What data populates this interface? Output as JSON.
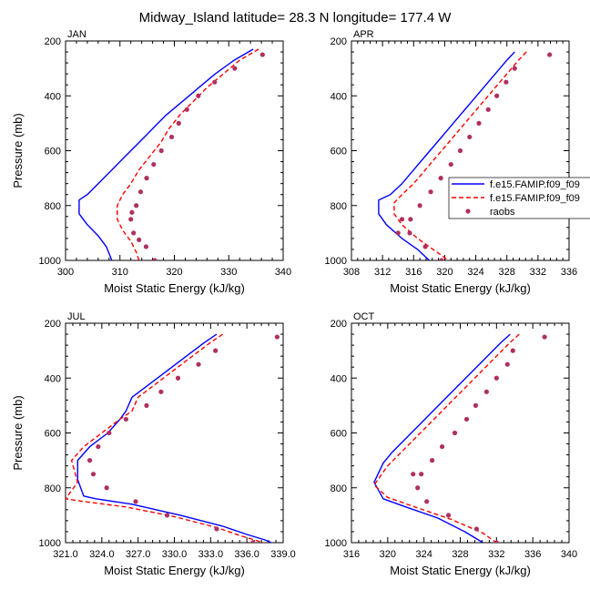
{
  "figure": {
    "title": "Midway_Island  latitude= 28.3 N longitude= 177.4 W"
  },
  "colors": {
    "model1": "#0000ff",
    "model2": "#ff0000",
    "raobs": "#b03060",
    "axis": "#000000"
  },
  "legend": {
    "placement": "right-of-top-right-panel",
    "entries": [
      {
        "key": "model1",
        "label": "f.e15.FAMIP.f09_f09",
        "style": "solid-line"
      },
      {
        "key": "model2",
        "label": "f.e15.FAMIP.f09_f09",
        "style": "dashed-line"
      },
      {
        "key": "raobs",
        "label": "raobs",
        "style": "dot"
      }
    ]
  },
  "chart_data": [
    {
      "type": "line",
      "panel_label": "JAN",
      "xlabel": "Moist Static Energy (kJ/kg)",
      "ylabel": "Pressure (mb)",
      "xlim": [
        300,
        340
      ],
      "ylim": [
        1000,
        200
      ],
      "y_inverted": true,
      "xticks": [
        300,
        310,
        320,
        330,
        340
      ],
      "xtick_labels": [
        "300",
        "310",
        "320",
        "330",
        "340"
      ],
      "yticks": [
        200,
        400,
        600,
        800,
        1000
      ],
      "ytick_labels": [
        "200",
        "400",
        "600",
        "800",
        "1000"
      ],
      "series": [
        {
          "key": "model1",
          "x": [
            334.5,
            331,
            327.5,
            324.5,
            321.5,
            318.5,
            316,
            313.5,
            311,
            308.5,
            306,
            304,
            302.5,
            302.5,
            304,
            306,
            307.5,
            308.5
          ],
          "y": [
            230,
            270,
            320,
            370,
            420,
            470,
            520,
            570,
            620,
            670,
            720,
            760,
            780,
            830,
            870,
            910,
            950,
            1000
          ]
        },
        {
          "key": "model2",
          "x": [
            335.5,
            332,
            329,
            326,
            323.5,
            321,
            319,
            317.5,
            315.5,
            313.5,
            312,
            310.5,
            309.5,
            309.5,
            310.5,
            312,
            313,
            313.5
          ],
          "y": [
            230,
            270,
            320,
            370,
            420,
            470,
            520,
            570,
            620,
            670,
            720,
            760,
            800,
            850,
            890,
            930,
            970,
            1000
          ]
        },
        {
          "key": "raobs",
          "style": "points",
          "x": [
            336.2,
            331.1,
            327.4,
            324.4,
            322.3,
            320.8,
            319.5,
            317.6,
            316.2,
            314.9,
            313.8,
            313.0,
            312.2,
            312.0,
            312.5,
            313.5,
            314.8,
            316.4
          ],
          "y": [
            250,
            300,
            350,
            400,
            450,
            500,
            550,
            600,
            650,
            700,
            750,
            800,
            825,
            850,
            900,
            925,
            950,
            1000
          ]
        }
      ]
    },
    {
      "type": "line",
      "panel_label": "APR",
      "xlabel": "Moist Static Energy (kJ/kg)",
      "ylabel": "",
      "xlim": [
        308,
        336
      ],
      "ylim": [
        1000,
        200
      ],
      "y_inverted": true,
      "xticks": [
        308,
        312,
        316,
        320,
        324,
        328,
        332,
        336
      ],
      "xtick_labels": [
        "308",
        "312",
        "316",
        "320",
        "324",
        "328",
        "332",
        "336"
      ],
      "yticks": [
        200,
        400,
        600,
        800,
        1000
      ],
      "ytick_labels": [
        "200",
        "400",
        "600",
        "800",
        "1000"
      ],
      "series": [
        {
          "key": "model1",
          "x": [
            329,
            328,
            326.5,
            325,
            323.5,
            322,
            320.5,
            319,
            317.5,
            316,
            314.5,
            313,
            311.5,
            311.5,
            312.5,
            314.5,
            316.5,
            318
          ],
          "y": [
            240,
            270,
            320,
            370,
            420,
            470,
            520,
            570,
            620,
            670,
            720,
            760,
            780,
            830,
            870,
            920,
            960,
            1000
          ]
        },
        {
          "key": "model2",
          "x": [
            330.5,
            329.5,
            328,
            326.5,
            325,
            323.5,
            322,
            320.5,
            319,
            317.5,
            316,
            314.5,
            313.5,
            313.5,
            314.5,
            316.5,
            318.5,
            320.5
          ],
          "y": [
            240,
            270,
            320,
            370,
            420,
            470,
            520,
            570,
            620,
            670,
            720,
            760,
            790,
            830,
            870,
            920,
            960,
            1000
          ]
        },
        {
          "key": "raobs",
          "style": "points",
          "x": [
            333.5,
            329.0,
            327.9,
            326.7,
            325.6,
            324.4,
            323.2,
            322.0,
            320.8,
            319.5,
            318.2,
            316.8,
            315.6,
            314.5,
            314.0,
            315.5,
            317.5,
            319.6
          ],
          "y": [
            250,
            300,
            350,
            400,
            450,
            500,
            550,
            600,
            650,
            700,
            750,
            800,
            850,
            850,
            900,
            900,
            950,
            1000
          ]
        }
      ]
    },
    {
      "type": "line",
      "panel_label": "JUL",
      "xlabel": "Moist Static Energy (kJ/kg)",
      "ylabel": "Pressure (mb)",
      "xlim": [
        321,
        339
      ],
      "ylim": [
        1000,
        200
      ],
      "y_inverted": true,
      "xticks": [
        321,
        324,
        327,
        330,
        333,
        336,
        339
      ],
      "xtick_labels": [
        "321.0",
        "324.0",
        "327.0",
        "330.0",
        "333.0",
        "336.0",
        "339.0"
      ],
      "yticks": [
        200,
        400,
        600,
        800,
        1000
      ],
      "ytick_labels": [
        "200",
        "400",
        "600",
        "800",
        "1000"
      ],
      "series": [
        {
          "key": "model1",
          "x": [
            333.5,
            332.5,
            331,
            329.5,
            328,
            326.5,
            326,
            325.5,
            324.5,
            323,
            322,
            322,
            322.5,
            323.5,
            326.5,
            330.5,
            334,
            336,
            337.5,
            338.5
          ],
          "y": [
            240,
            270,
            320,
            370,
            420,
            470,
            520,
            550,
            600,
            650,
            700,
            770,
            830,
            840,
            860,
            900,
            940,
            970,
            990,
            1010
          ]
        },
        {
          "key": "model2",
          "x": [
            334,
            333,
            331.5,
            330,
            328.5,
            327,
            326.5,
            325.5,
            324,
            322.5,
            321.5,
            322,
            321,
            322.5,
            326,
            330,
            333.5,
            335.5,
            337,
            338
          ],
          "y": [
            240,
            270,
            320,
            370,
            420,
            470,
            520,
            550,
            600,
            650,
            700,
            780,
            840,
            850,
            870,
            905,
            945,
            975,
            995,
            1010
          ]
        },
        {
          "key": "raobs",
          "style": "points",
          "x": [
            338.5,
            333.4,
            332.0,
            330.3,
            328.9,
            327.7,
            326.0,
            324.6,
            323.7,
            323.0,
            323.3,
            324.4,
            326.8,
            329.4,
            333.5,
            336.5
          ],
          "y": [
            250,
            300,
            350,
            400,
            450,
            500,
            550,
            600,
            650,
            700,
            750,
            800,
            850,
            900,
            950,
            1000
          ]
        }
      ]
    },
    {
      "type": "line",
      "panel_label": "OCT",
      "xlabel": "Moist Static Energy (kJ/kg)",
      "ylabel": "",
      "xlim": [
        316,
        340
      ],
      "ylim": [
        1000,
        200
      ],
      "y_inverted": true,
      "xticks": [
        316,
        320,
        324,
        328,
        332,
        336,
        340
      ],
      "xtick_labels": [
        "316",
        "320",
        "324",
        "328",
        "332",
        "336",
        "340"
      ],
      "yticks": [
        200,
        400,
        600,
        800,
        1000
      ],
      "ytick_labels": [
        "200",
        "400",
        "600",
        "800",
        "1000"
      ],
      "series": [
        {
          "key": "model1",
          "x": [
            333.5,
            332.5,
            331,
            329.5,
            328,
            326.5,
            325,
            323.5,
            322,
            320.5,
            319.5,
            318.5,
            319.5,
            322,
            325.5,
            328.5,
            330.5
          ],
          "y": [
            240,
            270,
            320,
            370,
            420,
            470,
            520,
            570,
            620,
            670,
            710,
            780,
            840,
            870,
            910,
            960,
            1000
          ]
        },
        {
          "key": "model2",
          "x": [
            334.5,
            333.5,
            332,
            330.5,
            329,
            327.5,
            326,
            324.5,
            323,
            321.5,
            320,
            318.5,
            320,
            323,
            327,
            330.5,
            332
          ],
          "y": [
            240,
            270,
            320,
            370,
            420,
            470,
            520,
            570,
            620,
            670,
            720,
            790,
            835,
            870,
            915,
            965,
            1000
          ]
        },
        {
          "key": "raobs",
          "style": "points",
          "x": [
            337.3,
            333.8,
            333.2,
            332.0,
            330.9,
            329.7,
            328.7,
            327.4,
            326.0,
            324.9,
            323.7,
            323.3,
            322.8,
            324.3,
            326.7,
            329.8,
            332.0
          ],
          "y": [
            250,
            300,
            350,
            400,
            450,
            500,
            550,
            600,
            650,
            700,
            750,
            800,
            750,
            850,
            900,
            950,
            1000
          ]
        }
      ]
    }
  ]
}
